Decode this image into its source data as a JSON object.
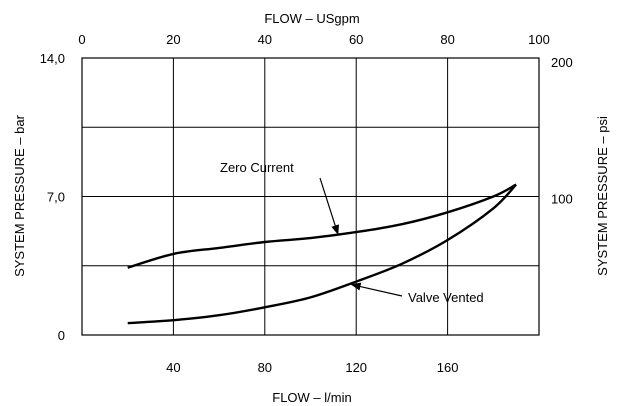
{
  "chart_data": {
    "type": "line",
    "axes": {
      "x_bottom": {
        "label": "FLOW – l/min",
        "range": [
          0,
          200
        ],
        "ticks": [
          40,
          80,
          120,
          160
        ]
      },
      "x_top": {
        "label": "FLOW – USgpm",
        "range": [
          0,
          100
        ],
        "ticks": [
          0,
          20,
          40,
          60,
          80,
          100
        ]
      },
      "y_left": {
        "label": "SYSTEM PRESSURE – bar",
        "range": [
          0,
          14
        ],
        "tick_labels": [
          "0",
          "7,0",
          "14,0"
        ],
        "tick_values": [
          0,
          7,
          14
        ]
      },
      "y_right": {
        "label": "SYSTEM PRESSURE – psi",
        "range": [
          0,
          203
        ],
        "tick_labels": [
          "100",
          "200"
        ],
        "tick_values": [
          100,
          200
        ]
      }
    },
    "grid": true,
    "series": [
      {
        "name": "Zero Current",
        "x": [
          20,
          40,
          60,
          80,
          100,
          120,
          140,
          160,
          180,
          190
        ],
        "y": [
          3.4,
          4.1,
          4.4,
          4.7,
          4.9,
          5.2,
          5.6,
          6.2,
          7.0,
          7.6
        ]
      },
      {
        "name": "Valve Vented",
        "x": [
          20,
          40,
          60,
          80,
          100,
          120,
          140,
          160,
          180,
          190
        ],
        "y": [
          0.6,
          0.75,
          1.0,
          1.4,
          1.9,
          2.7,
          3.6,
          4.8,
          6.4,
          7.6
        ]
      }
    ],
    "annotations": [
      {
        "text": "Zero Current",
        "series": "Zero Current"
      },
      {
        "text": "Valve Vented",
        "series": "Valve Vented"
      }
    ]
  }
}
